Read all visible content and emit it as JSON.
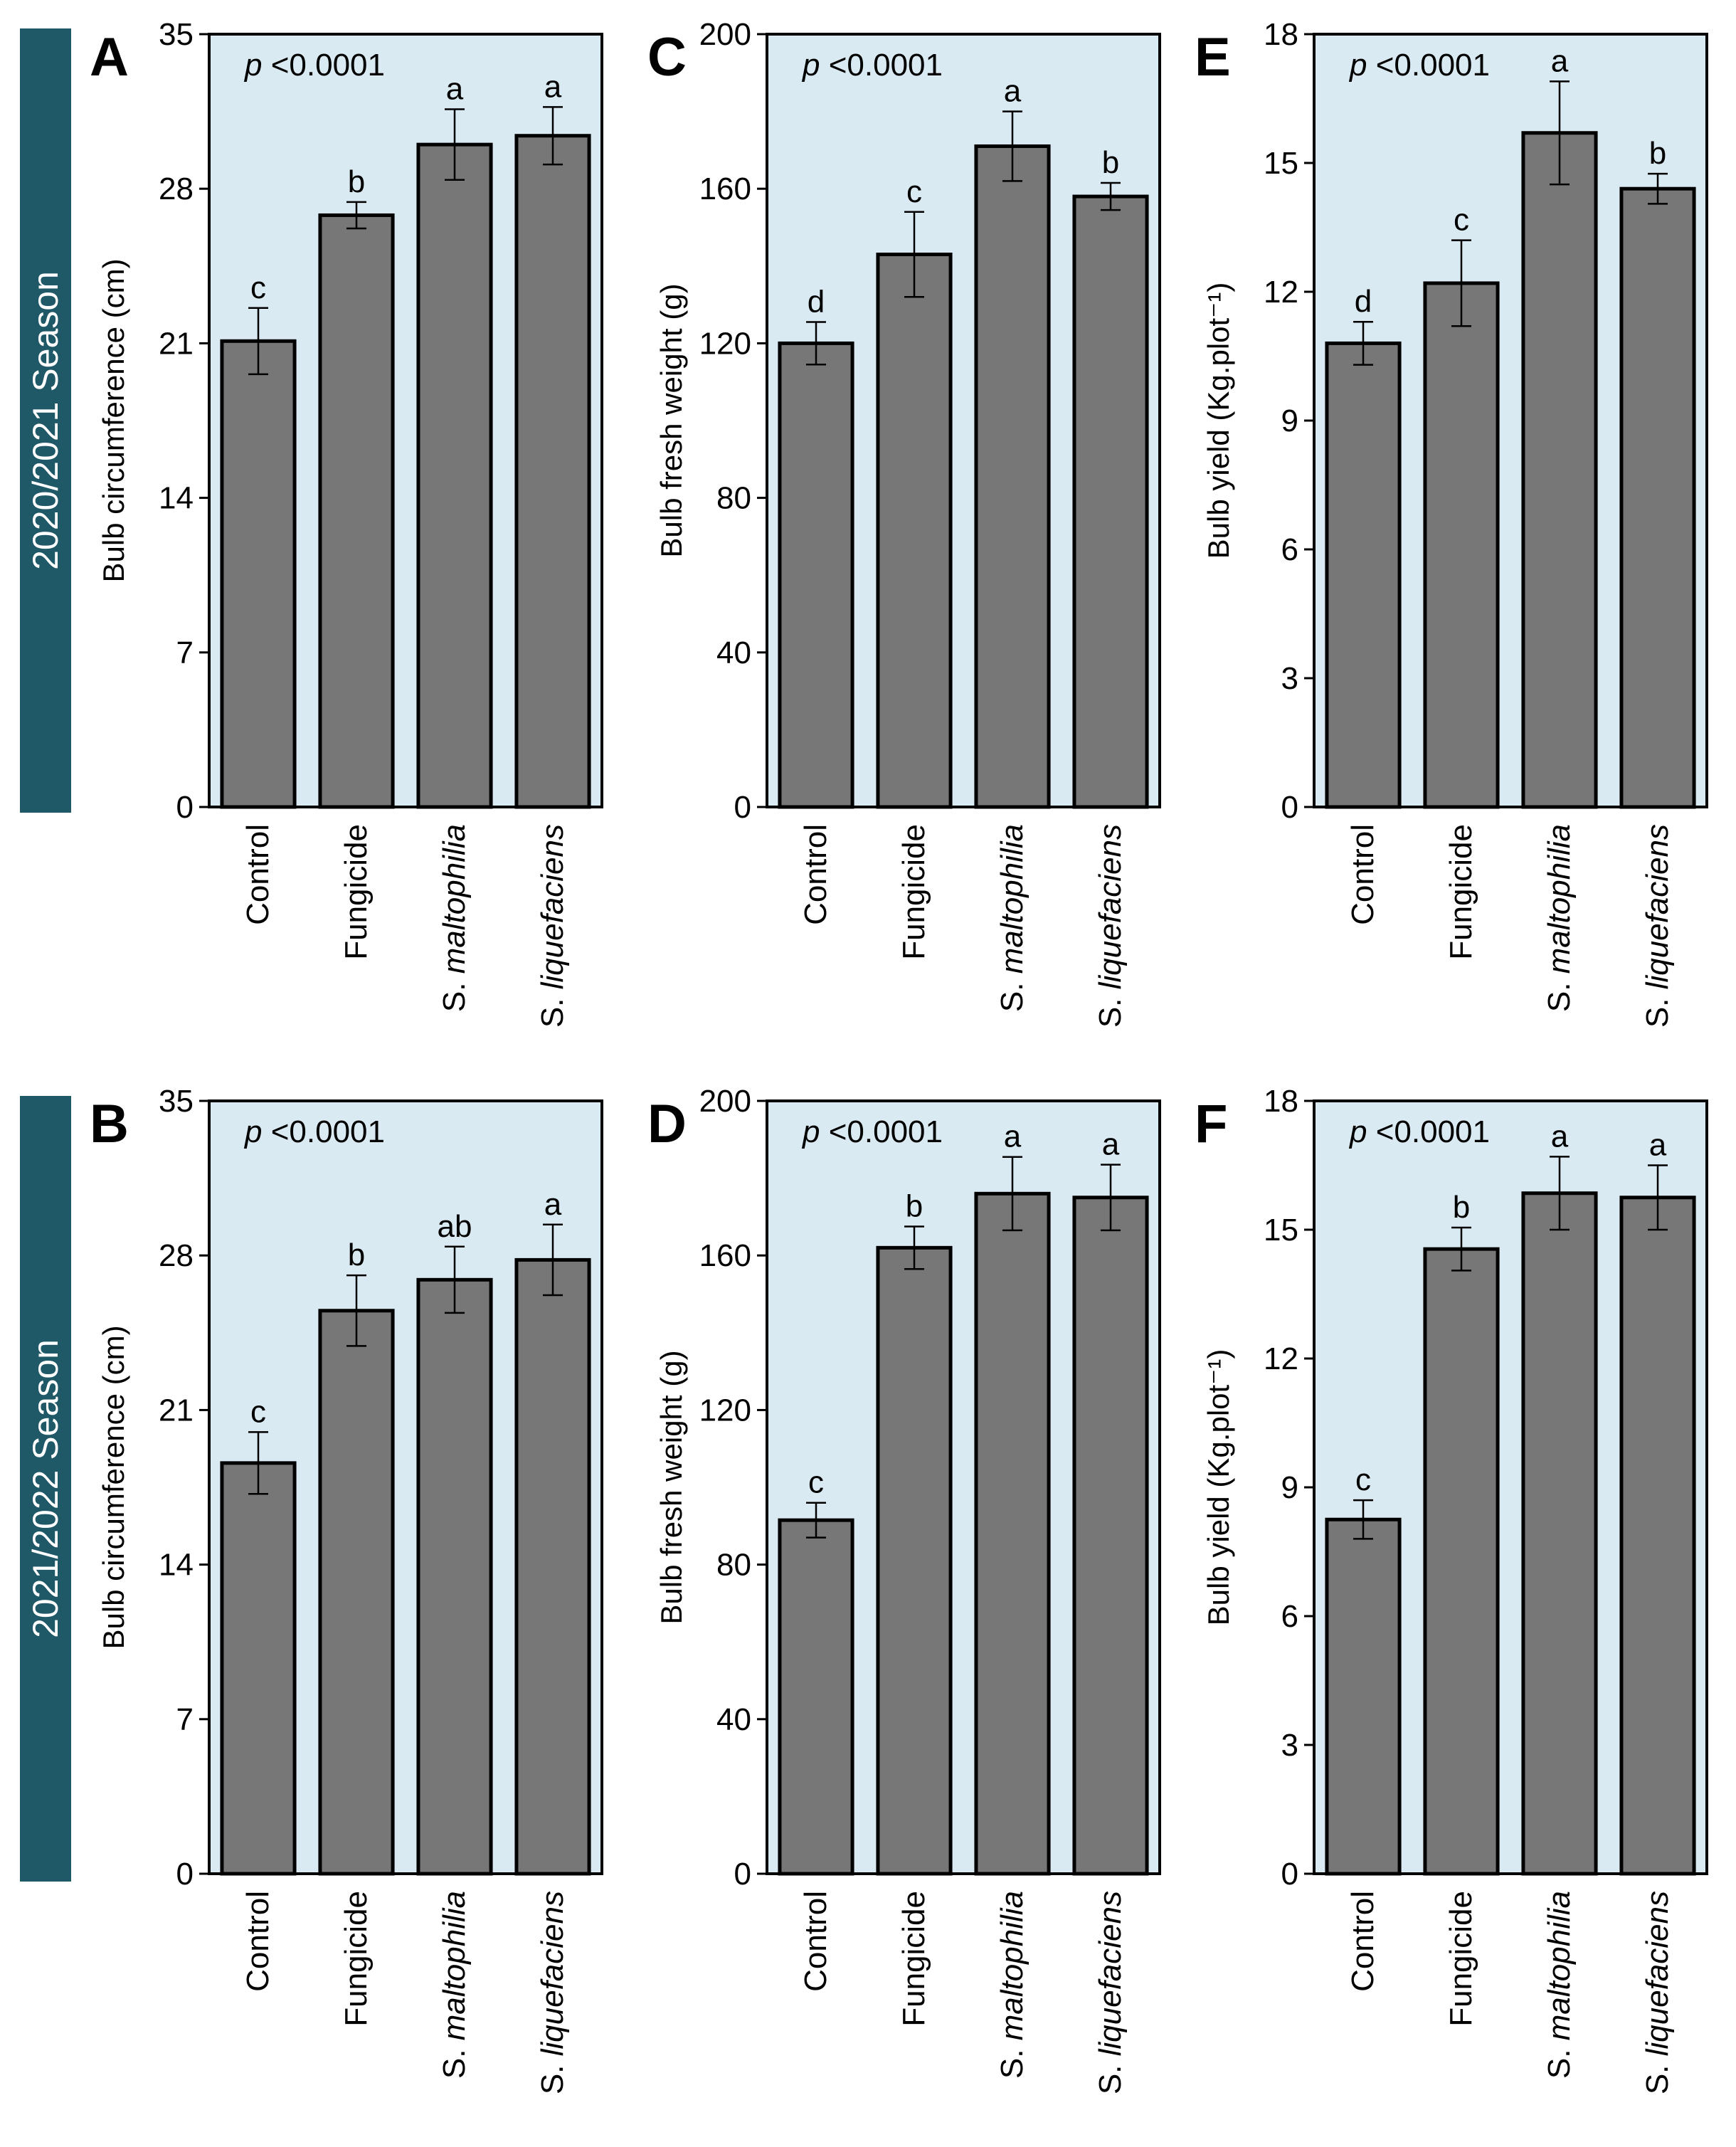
{
  "seasons": [
    "2020/2021 Season",
    "2021/2022 Season"
  ],
  "colors": {
    "plot_bg": "#daeaf2",
    "bar": "#777777",
    "season_band": "#1f5866",
    "text": "#000000"
  },
  "chart_data": [
    {
      "panel": "A",
      "type": "bar",
      "season": "2020/2021 Season",
      "title": "",
      "p_label": "p",
      "p_value": "<0.0001",
      "xlabel": "",
      "ylabel": "Bulb circumference (cm)",
      "categories": [
        "Control",
        "Fungicide",
        "S. maltophilia",
        "S. liquefaciens"
      ],
      "values": [
        21.1,
        26.8,
        30.0,
        30.4
      ],
      "errors": [
        1.5,
        0.6,
        1.6,
        1.3
      ],
      "letters": [
        "c",
        "b",
        "a",
        "a"
      ],
      "ylim": [
        0,
        35
      ],
      "yticks": [
        0,
        7,
        14,
        21,
        28,
        35
      ],
      "grid": false
    },
    {
      "panel": "C",
      "type": "bar",
      "season": "2020/2021 Season",
      "title": "",
      "p_label": "p",
      "p_value": "<0.0001",
      "xlabel": "",
      "ylabel": "Bulb fresh weight (g)",
      "categories": [
        "Control",
        "Fungicide",
        "S. maltophilia",
        "S. liquefaciens"
      ],
      "values": [
        120,
        143,
        171,
        158
      ],
      "errors": [
        5.5,
        11,
        9,
        3.5
      ],
      "letters": [
        "d",
        "c",
        "a",
        "b"
      ],
      "ylim": [
        0,
        200
      ],
      "yticks": [
        0,
        40,
        80,
        120,
        160,
        200
      ],
      "grid": false
    },
    {
      "panel": "E",
      "type": "bar",
      "season": "2020/2021 Season",
      "title": "",
      "p_label": "p",
      "p_value": "<0.0001",
      "xlabel": "",
      "ylabel": "Bulb yield (Kg.plot⁻¹)",
      "categories": [
        "Control",
        "Fungicide",
        "S. maltophilia",
        "S. liquefaciens"
      ],
      "values": [
        10.8,
        12.2,
        15.7,
        14.4
      ],
      "errors": [
        0.5,
        1.0,
        1.2,
        0.35
      ],
      "letters": [
        "d",
        "c",
        "a",
        "b"
      ],
      "ylim": [
        0,
        18
      ],
      "yticks": [
        0,
        3,
        6,
        9,
        12,
        15,
        18
      ],
      "grid": false
    },
    {
      "panel": "B",
      "type": "bar",
      "season": "2021/2022 Season",
      "title": "",
      "p_label": "p",
      "p_value": "<0.0001",
      "xlabel": "",
      "ylabel": "Bulb circumference (cm)",
      "categories": [
        "Control",
        "Fungicide",
        "S. maltophilia",
        "S. liquefaciens"
      ],
      "values": [
        18.6,
        25.5,
        26.9,
        27.8
      ],
      "errors": [
        1.4,
        1.6,
        1.5,
        1.6
      ],
      "letters": [
        "c",
        "b",
        "ab",
        "a"
      ],
      "ylim": [
        0,
        35
      ],
      "yticks": [
        0,
        7,
        14,
        21,
        28,
        35
      ],
      "grid": false
    },
    {
      "panel": "D",
      "type": "bar",
      "season": "2021/2022 Season",
      "title": "",
      "p_label": "p",
      "p_value": "<0.0001",
      "xlabel": "",
      "ylabel": "Bulb fresh weight (g)",
      "categories": [
        "Control",
        "Fungicide",
        "S. maltophilia",
        "S. liquefaciens"
      ],
      "values": [
        91.5,
        162,
        176,
        175
      ],
      "errors": [
        4.5,
        5.5,
        9.5,
        8.5
      ],
      "letters": [
        "c",
        "b",
        "a",
        "a"
      ],
      "ylim": [
        0,
        200
      ],
      "yticks": [
        0,
        40,
        80,
        120,
        160,
        200
      ],
      "grid": false
    },
    {
      "panel": "F",
      "type": "bar",
      "season": "2021/2022 Season",
      "title": "",
      "p_label": "p",
      "p_value": "<0.0001",
      "xlabel": "",
      "ylabel": "Bulb yield (Kg.plot⁻¹)",
      "categories": [
        "Control",
        "Fungicide",
        "S. maltophilia",
        "S. liquefaciens"
      ],
      "values": [
        8.25,
        14.55,
        15.85,
        15.75
      ],
      "errors": [
        0.45,
        0.5,
        0.85,
        0.75
      ],
      "letters": [
        "c",
        "b",
        "a",
        "a"
      ],
      "ylim": [
        0,
        18
      ],
      "yticks": [
        0,
        3,
        6,
        9,
        12,
        15,
        18
      ],
      "grid": false
    }
  ]
}
